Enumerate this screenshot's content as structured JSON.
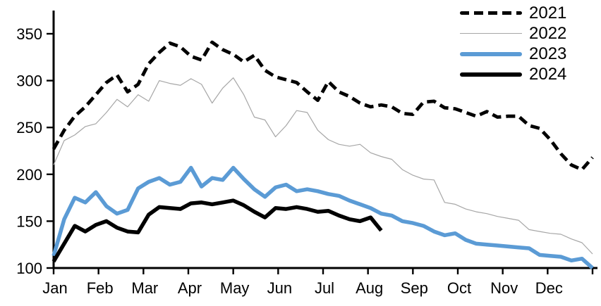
{
  "chart_data": {
    "type": "line",
    "title": "",
    "xlabel": "",
    "ylabel": "",
    "x_unit": "weekly",
    "months": [
      "Jan",
      "Feb",
      "Mar",
      "Apr",
      "May",
      "Jun",
      "Jul",
      "Aug",
      "Sep",
      "Oct",
      "Nov",
      "Dec"
    ],
    "y_ticks": [
      100,
      150,
      200,
      250,
      300,
      350
    ],
    "ylim": [
      100,
      350
    ],
    "grid": false,
    "legend_position": "top-right",
    "series": [
      {
        "name": "2021",
        "color": "#000000",
        "style": "dashed",
        "width": 4.8,
        "values": [
          227,
          247,
          262,
          272,
          285,
          298,
          306,
          288,
          296,
          318,
          330,
          340,
          336,
          326,
          322,
          341,
          333,
          328,
          320,
          327,
          311,
          304,
          301,
          298,
          288,
          279,
          299,
          288,
          283,
          276,
          272,
          274,
          272,
          265,
          264,
          277,
          278,
          271,
          270,
          266,
          262,
          267,
          261,
          262,
          262,
          252,
          249,
          237,
          222,
          210,
          205,
          218
        ]
      },
      {
        "name": "2022",
        "color": "#a6a6a6",
        "style": "solid",
        "width": 1.2,
        "values": [
          210,
          236,
          242,
          251,
          254,
          266,
          280,
          272,
          285,
          278,
          300,
          297,
          295,
          302,
          296,
          276,
          292,
          303,
          285,
          261,
          258,
          240,
          252,
          268,
          266,
          247,
          237,
          232,
          230,
          232,
          223,
          219,
          216,
          205,
          199,
          195,
          194,
          170,
          168,
          163,
          160,
          158,
          155,
          153,
          151,
          141,
          139,
          137,
          136,
          131,
          127,
          115
        ]
      },
      {
        "name": "2023",
        "color": "#5b9bd5",
        "style": "solid",
        "width": 5.5,
        "values": [
          113,
          152,
          175,
          170,
          181,
          166,
          158,
          162,
          185,
          192,
          196,
          189,
          192,
          207,
          187,
          196,
          194,
          207,
          195,
          184,
          176,
          186,
          189,
          182,
          184,
          182,
          179,
          177,
          172,
          168,
          164,
          158,
          156,
          150,
          148,
          145,
          139,
          135,
          137,
          130,
          126,
          125,
          124,
          123,
          122,
          121,
          114,
          113,
          112,
          108,
          110,
          100
        ]
      },
      {
        "name": "2024",
        "color": "#000000",
        "style": "solid",
        "width": 5.5,
        "values": [
          107,
          126,
          145,
          139,
          146,
          150,
          143,
          139,
          138,
          157,
          165,
          164,
          163,
          169,
          170,
          168,
          170,
          172,
          167,
          160,
          154,
          164,
          163,
          165,
          163,
          160,
          161,
          156,
          152,
          150,
          154,
          140
        ]
      }
    ]
  }
}
